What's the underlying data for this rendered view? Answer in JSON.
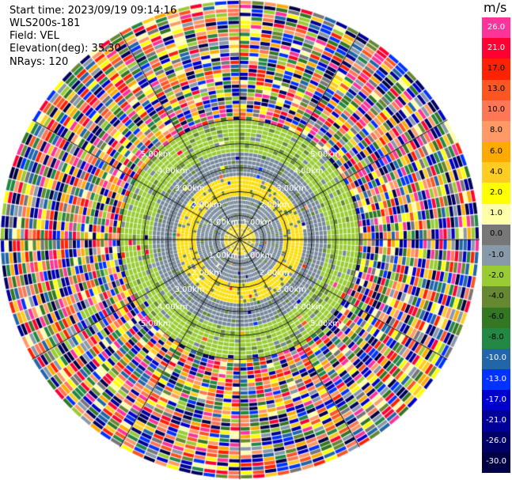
{
  "header": {
    "start_time": "Start time: 2023/09/19 09:14:16",
    "instrument": "WLS200s-181",
    "field": "Field: VEL",
    "elevation": "Elevation(deg): 35.30",
    "nrays": "NRays: 120"
  },
  "chart_data": {
    "type": "heatmap",
    "projection": "polar-ppi",
    "title": "",
    "field": "VEL",
    "units": "m/s",
    "n_rays": 120,
    "max_range_km": 10,
    "range_ring_labels": [
      "1.00km",
      "2.00km",
      "3.00km",
      "4.00km",
      "5.00km"
    ],
    "colorbar": {
      "ticks": [
        "26.0",
        "21.0",
        "17.0",
        "13.0",
        "10.0",
        "8.0",
        "6.0",
        "4.0",
        "2.0",
        "1.0",
        "0.0",
        "-1.0",
        "-2.0",
        "-4.0",
        "-6.0",
        "-8.0",
        "-10.0",
        "-13.0",
        "-17.0",
        "-21.0",
        "-26.0",
        "-30.0"
      ],
      "colors": [
        "#ff3399",
        "#ff0033",
        "#ff2200",
        "#ff5522",
        "#ff7755",
        "#ff9966",
        "#ffaa00",
        "#ffcc22",
        "#ffff00",
        "#ffffaa",
        "#777777",
        "#8899aa",
        "#99cc33",
        "#668833",
        "#337722",
        "#228844",
        "#2266aa",
        "#0033ff",
        "#0000cc",
        "#000099",
        "#000066",
        "#000044"
      ]
    },
    "regions": [
      {
        "range_km": [
          0.0,
          0.5
        ],
        "dominant_color": "#ffdd00"
      },
      {
        "range_km": [
          0.5,
          1.8
        ],
        "dominant_color": "#778899"
      },
      {
        "range_km": [
          1.8,
          2.6
        ],
        "dominant_color": "#ffdd00"
      },
      {
        "range_km": [
          2.6,
          3.6
        ],
        "dominant_color": "#778899"
      },
      {
        "range_km": [
          3.6,
          5.0
        ],
        "dominant_color": "#99cc33"
      },
      {
        "range_km": [
          5.0,
          10.0
        ],
        "dominant_color": "noise"
      }
    ]
  }
}
